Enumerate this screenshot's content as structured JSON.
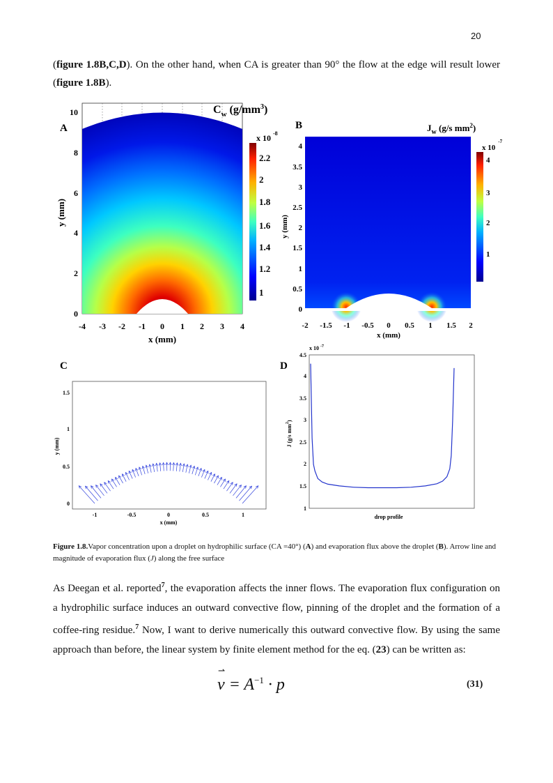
{
  "page_number": "20",
  "intro": {
    "t1": "(",
    "b1": "figure 1.8B,C,D",
    "t2": "). On the other hand, when CA is greater than 90° the flow at the edge will result lower (",
    "b2": "figure 1.8B",
    "t3": ")."
  },
  "panels": {
    "A": {
      "letter": "A",
      "title_main": "C",
      "title_sub": "w",
      "title_rest": " (g/mm",
      "title_sup": "3",
      "title_end": ")",
      "xlabel": "x (mm)",
      "ylabel": "y (mm)",
      "xticks": [
        "-4",
        "-3",
        "-2",
        "-1",
        "0",
        "1",
        "2",
        "3",
        "4"
      ],
      "yticks": [
        "0",
        "2",
        "4",
        "6",
        "8",
        "10"
      ],
      "cb_mult": "x 10",
      "cb_exp": "-8",
      "cb_ticks": [
        "2.2",
        "2",
        "1.8",
        "1.6",
        "1.4",
        "1.2",
        "1"
      ]
    },
    "B": {
      "letter": "B",
      "title_main": "J",
      "title_sub": "w",
      "title_rest": " (g/s mm",
      "title_sup": "2",
      "title_end": ")",
      "xlabel": "x (mm)",
      "ylabel": "y (mm)",
      "xticks": [
        "-2",
        "-1.5",
        "-1",
        "-0.5",
        "0",
        "0.5",
        "1",
        "1.5",
        "2"
      ],
      "yticks": [
        "0",
        "0.5",
        "1",
        "1.5",
        "2",
        "2.5",
        "3",
        "3.5",
        "4"
      ],
      "cb_mult": "x 10",
      "cb_exp": "-7",
      "cb_ticks": [
        "4",
        "3",
        "2",
        "1"
      ]
    },
    "C": {
      "letter": "C",
      "xlabel": "x (mm)",
      "ylabel": "y (mm)",
      "xticks": [
        "-1",
        "-0.5",
        "0",
        "0.5",
        "1"
      ],
      "yticks": [
        "0",
        "0.5",
        "1",
        "1.5"
      ]
    },
    "D": {
      "letter": "D",
      "xlabel": "drop profile",
      "ylabel": "J (g/s mm",
      "ylabel_sup": "2",
      "ylabel_end": ")",
      "mult": "x 10",
      "exp": "-7",
      "yticks": [
        "1",
        "1.5",
        "2",
        "2.5",
        "3",
        "3.5",
        "4",
        "4.5"
      ]
    }
  },
  "chart_data": [
    {
      "type": "line",
      "panel": "D",
      "xlabel": "drop profile",
      "ylabel": "J (g/s mm2)",
      "ylim": [
        1,
        4.5
      ],
      "y_multiplier": "x 10-7",
      "x": [
        0,
        0.01,
        0.02,
        0.03,
        0.05,
        0.08,
        0.12,
        0.2,
        0.3,
        0.4,
        0.5,
        0.6,
        0.7,
        0.8,
        0.88,
        0.92,
        0.95,
        0.97,
        0.98,
        0.99,
        1.0
      ],
      "values": [
        4.3,
        2.6,
        2.0,
        1.85,
        1.68,
        1.6,
        1.55,
        1.51,
        1.48,
        1.47,
        1.47,
        1.47,
        1.48,
        1.51,
        1.56,
        1.62,
        1.72,
        1.9,
        2.2,
        3.0,
        4.2
      ]
    }
  ],
  "caption": {
    "label": "Figure 1.8.",
    "t1": "Vapor concentration upon a droplet on hydrophilic surface (CA =40°) (",
    "b1": "A",
    "t2": ") and evaporation flux above the droplet (",
    "b2": "B",
    "t3": "). Arrow line and magnitude of evaporation flux (",
    "i1": "J",
    "t4": ") along the free surface"
  },
  "para2": {
    "t1": "As Deegan et al. reported",
    "sup1": "7",
    "t2": ", the evaporation affects the inner flows.  The evaporation flux configuration on a hydrophilic surface induces an outward convective flow, pinning of the droplet and the formation of a coffee-ring residue.",
    "sup2": "7",
    "t3": " Now, I want to derive numerically this outward convective flow. By using the same approach than before, the linear system by finite element method for the eq. (",
    "b1": "23",
    "t4": ") can be written as:"
  },
  "equation": {
    "lhs": "v",
    "eq": " = A",
    "sup": "−1",
    "rhs": " · p",
    "number": "(31)"
  },
  "colors": {
    "jet_low": "#00008f",
    "jet_high": "#800000",
    "arrow": "#3344dd",
    "line": "#2233cc"
  }
}
